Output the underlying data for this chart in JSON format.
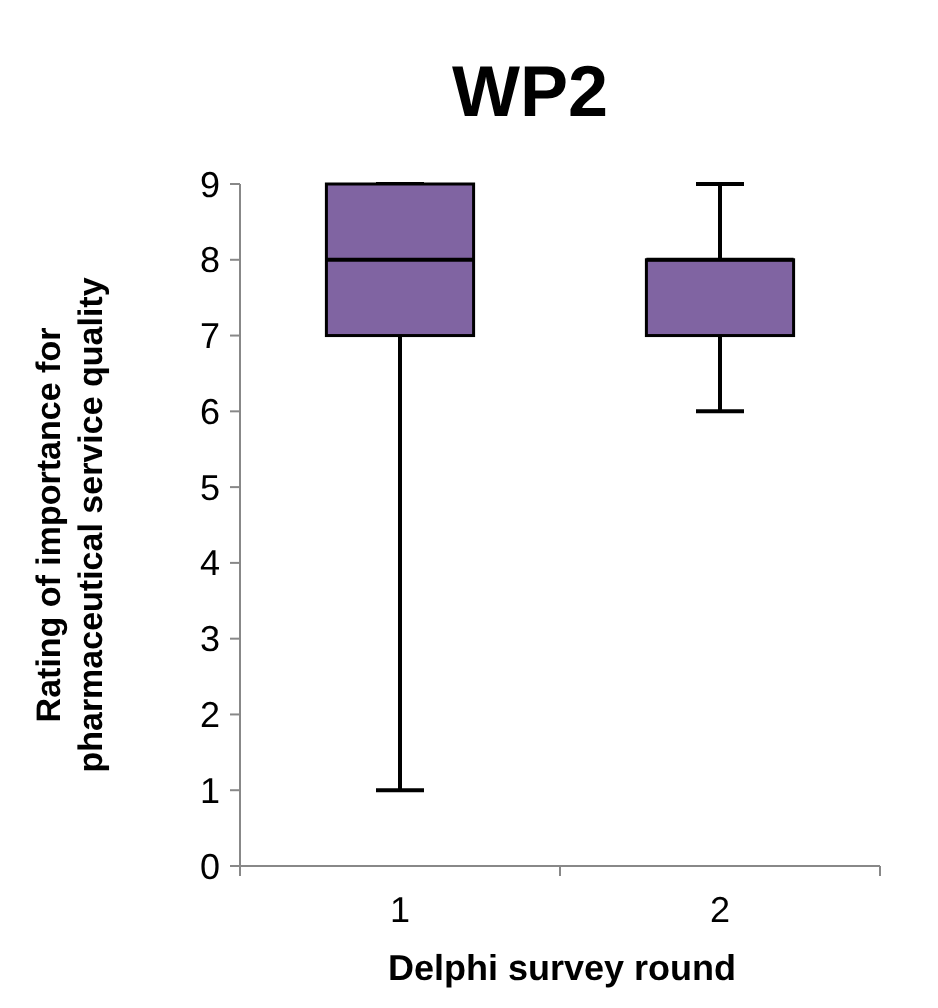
{
  "chart_data": {
    "type": "box",
    "title": "WP2",
    "xlabel": "Delphi survey round",
    "ylabel": "Rating of importance for pharmaceutical service quality",
    "categories": [
      "1",
      "2"
    ],
    "boxes": [
      {
        "low": 1,
        "q1": 7,
        "median": 8,
        "q3": 9,
        "high": 9
      },
      {
        "low": 6,
        "q1": 7,
        "median": 8,
        "q3": 8,
        "high": 9
      }
    ],
    "color": "#8064a2",
    "ylim": [
      0,
      9
    ],
    "yticks": [
      0,
      1,
      2,
      3,
      4,
      5,
      6,
      7,
      8,
      9
    ],
    "grid": false
  }
}
